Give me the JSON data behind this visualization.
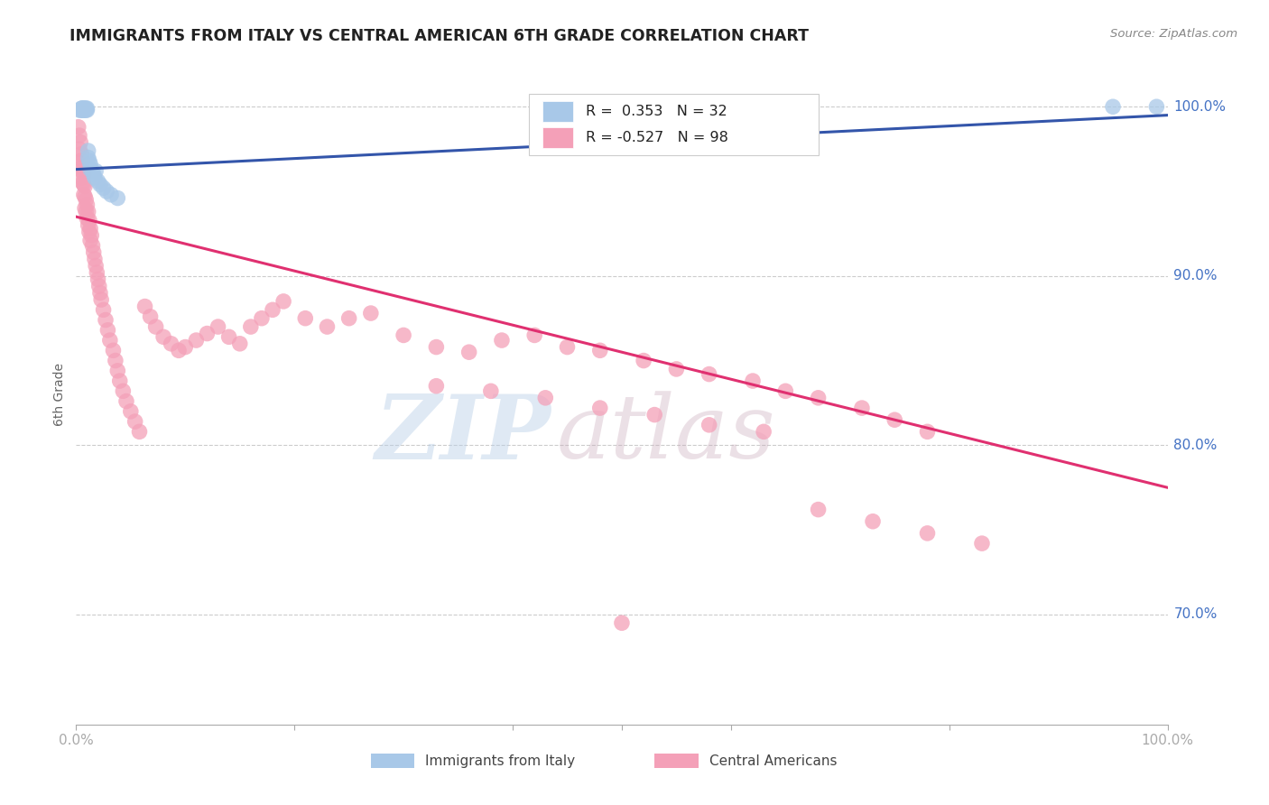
{
  "title": "IMMIGRANTS FROM ITALY VS CENTRAL AMERICAN 6TH GRADE CORRELATION CHART",
  "source": "Source: ZipAtlas.com",
  "ylabel": "6th Grade",
  "right_ytick_labels": [
    "100.0%",
    "90.0%",
    "80.0%",
    "70.0%"
  ],
  "right_ytick_values": [
    1.0,
    0.9,
    0.8,
    0.7
  ],
  "xlim": [
    0.0,
    1.0
  ],
  "ylim": [
    0.635,
    1.025
  ],
  "legend_italy_r": "0.353",
  "legend_italy_n": "32",
  "legend_central_r": "-0.527",
  "legend_central_n": "98",
  "italy_color": "#a8c8e8",
  "central_color": "#f4a0b8",
  "italy_line_color": "#3355aa",
  "central_line_color": "#e03070",
  "background_color": "#ffffff",
  "watermark_zip": "ZIP",
  "watermark_atlas": "atlas",
  "italy_line_x": [
    0.0,
    1.0
  ],
  "italy_line_y": [
    0.963,
    0.995
  ],
  "central_line_x": [
    0.0,
    1.0
  ],
  "central_line_y": [
    0.935,
    0.775
  ],
  "italy_x": [
    0.003,
    0.004,
    0.005,
    0.005,
    0.006,
    0.006,
    0.006,
    0.007,
    0.007,
    0.008,
    0.008,
    0.009,
    0.009,
    0.01,
    0.01,
    0.011,
    0.011,
    0.012,
    0.013,
    0.013,
    0.015,
    0.016,
    0.017,
    0.018,
    0.02,
    0.022,
    0.025,
    0.028,
    0.032,
    0.038,
    0.95,
    0.99
  ],
  "italy_y": [
    0.998,
    0.998,
    0.999,
    0.999,
    0.998,
    0.998,
    0.999,
    0.998,
    0.999,
    0.998,
    0.999,
    0.998,
    0.999,
    0.998,
    0.999,
    0.974,
    0.97,
    0.968,
    0.966,
    0.963,
    0.962,
    0.96,
    0.958,
    0.962,
    0.956,
    0.954,
    0.952,
    0.95,
    0.948,
    0.946,
    1.0,
    1.0
  ],
  "central_x": [
    0.002,
    0.003,
    0.003,
    0.004,
    0.004,
    0.005,
    0.005,
    0.005,
    0.006,
    0.006,
    0.006,
    0.007,
    0.007,
    0.007,
    0.008,
    0.008,
    0.008,
    0.009,
    0.009,
    0.01,
    0.01,
    0.011,
    0.011,
    0.012,
    0.012,
    0.013,
    0.013,
    0.014,
    0.015,
    0.016,
    0.017,
    0.018,
    0.019,
    0.02,
    0.021,
    0.022,
    0.023,
    0.025,
    0.027,
    0.029,
    0.031,
    0.034,
    0.036,
    0.038,
    0.04,
    0.043,
    0.046,
    0.05,
    0.054,
    0.058,
    0.063,
    0.068,
    0.073,
    0.08,
    0.087,
    0.094,
    0.1,
    0.11,
    0.12,
    0.13,
    0.14,
    0.15,
    0.16,
    0.17,
    0.18,
    0.19,
    0.21,
    0.23,
    0.25,
    0.27,
    0.3,
    0.33,
    0.36,
    0.39,
    0.42,
    0.45,
    0.48,
    0.52,
    0.55,
    0.58,
    0.62,
    0.65,
    0.68,
    0.72,
    0.75,
    0.78,
    0.33,
    0.38,
    0.43,
    0.48,
    0.53,
    0.58,
    0.63,
    0.68,
    0.73,
    0.78,
    0.83,
    0.5
  ],
  "central_y": [
    0.988,
    0.983,
    0.975,
    0.979,
    0.968,
    0.972,
    0.964,
    0.958,
    0.968,
    0.962,
    0.955,
    0.96,
    0.954,
    0.948,
    0.953,
    0.947,
    0.94,
    0.945,
    0.938,
    0.942,
    0.934,
    0.938,
    0.93,
    0.933,
    0.926,
    0.928,
    0.921,
    0.924,
    0.918,
    0.914,
    0.91,
    0.906,
    0.902,
    0.898,
    0.894,
    0.89,
    0.886,
    0.88,
    0.874,
    0.868,
    0.862,
    0.856,
    0.85,
    0.844,
    0.838,
    0.832,
    0.826,
    0.82,
    0.814,
    0.808,
    0.882,
    0.876,
    0.87,
    0.864,
    0.86,
    0.856,
    0.858,
    0.862,
    0.866,
    0.87,
    0.864,
    0.86,
    0.87,
    0.875,
    0.88,
    0.885,
    0.875,
    0.87,
    0.875,
    0.878,
    0.865,
    0.858,
    0.855,
    0.862,
    0.865,
    0.858,
    0.856,
    0.85,
    0.845,
    0.842,
    0.838,
    0.832,
    0.828,
    0.822,
    0.815,
    0.808,
    0.835,
    0.832,
    0.828,
    0.822,
    0.818,
    0.812,
    0.808,
    0.762,
    0.755,
    0.748,
    0.742,
    0.695
  ]
}
